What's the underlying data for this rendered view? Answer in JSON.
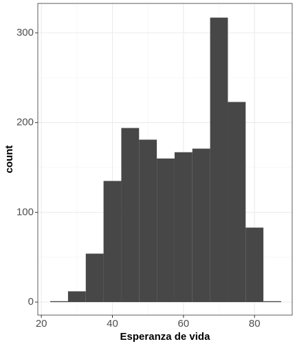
{
  "chart_data": {
    "type": "histogram",
    "x_label": "Esperanza de vida",
    "y_label": "count",
    "bins": [
      22.5,
      27.5,
      32.5,
      37.5,
      42.5,
      47.5,
      52.5,
      57.5,
      62.5,
      67.5,
      72.5,
      77.5,
      82.5,
      87.5
    ],
    "values": [
      1,
      12,
      54,
      135,
      194,
      181,
      160,
      167,
      171,
      317,
      223,
      83,
      1
    ],
    "color": "#474747",
    "xlim": [
      19,
      90.6
    ],
    "xticks": [
      20,
      40,
      60,
      80
    ],
    "ylim": [
      -14.5,
      332.8
    ],
    "yticks": [
      0,
      100,
      200,
      300
    ],
    "grid": true
  }
}
